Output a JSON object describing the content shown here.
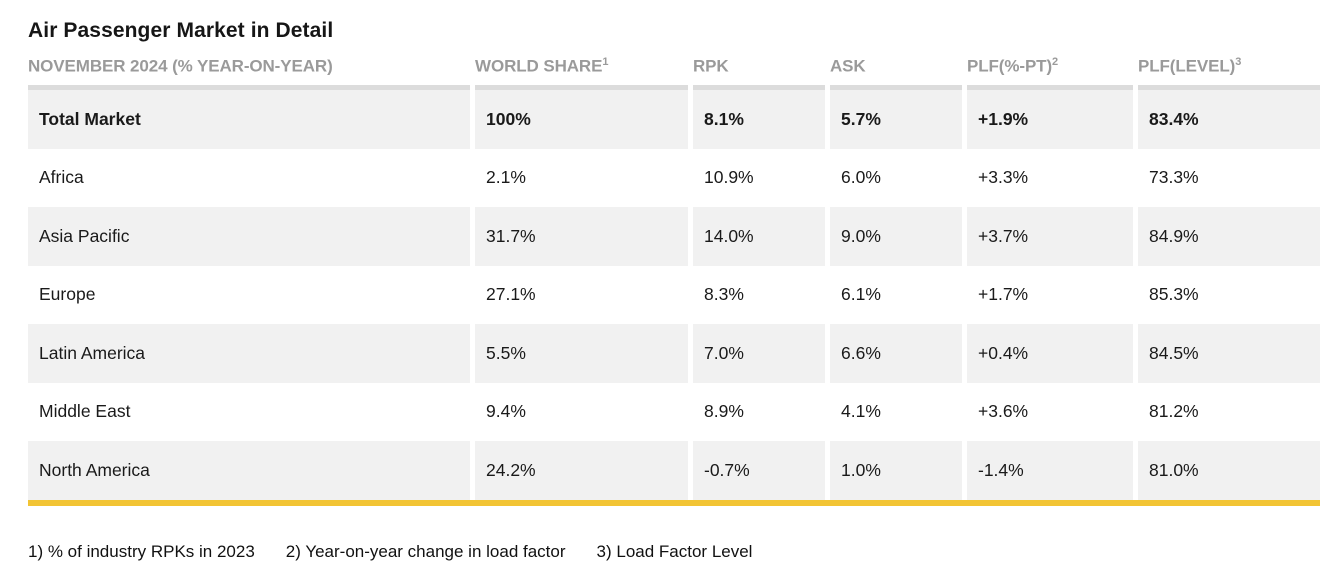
{
  "title": "Air Passenger Market in Detail",
  "accent_color": "#F2C434",
  "table": {
    "headers": [
      {
        "label": "NOVEMBER 2024 (% YEAR-ON-YEAR)",
        "sup": ""
      },
      {
        "label": "WORLD SHARE",
        "sup": "1"
      },
      {
        "label": "RPK",
        "sup": ""
      },
      {
        "label": "ASK",
        "sup": ""
      },
      {
        "label": "PLF(%-PT)",
        "sup": "2"
      },
      {
        "label": "PLF(LEVEL)",
        "sup": "3"
      }
    ],
    "rows": [
      {
        "region": "Total Market",
        "world_share": "100%",
        "rpk": "8.1%",
        "ask": "5.7%",
        "plf_pt": "+1.9%",
        "plf_level": "83.4%"
      },
      {
        "region": "Africa",
        "world_share": "2.1%",
        "rpk": "10.9%",
        "ask": "6.0%",
        "plf_pt": "+3.3%",
        "plf_level": "73.3%"
      },
      {
        "region": "Asia Pacific",
        "world_share": "31.7%",
        "rpk": "14.0%",
        "ask": "9.0%",
        "plf_pt": "+3.7%",
        "plf_level": "84.9%"
      },
      {
        "region": "Europe",
        "world_share": "27.1%",
        "rpk": "8.3%",
        "ask": "6.1%",
        "plf_pt": "+1.7%",
        "plf_level": "85.3%"
      },
      {
        "region": "Latin America",
        "world_share": "5.5%",
        "rpk": "7.0%",
        "ask": "6.6%",
        "plf_pt": "+0.4%",
        "plf_level": "84.5%"
      },
      {
        "region": "Middle East",
        "world_share": "9.4%",
        "rpk": "8.9%",
        "ask": "4.1%",
        "plf_pt": "+3.6%",
        "plf_level": "81.2%"
      },
      {
        "region": "North America",
        "world_share": "24.2%",
        "rpk": "-0.7%",
        "ask": "1.0%",
        "plf_pt": "-1.4%",
        "plf_level": "81.0%"
      }
    ]
  },
  "footnotes": [
    "1) % of industry RPKs in 2023",
    "2) Year-on-year change in load factor",
    "3) Load Factor Level"
  ],
  "chart_data": {
    "type": "table",
    "title": "Air Passenger Market in Detail",
    "subtitle": "NOVEMBER 2024 (% YEAR-ON-YEAR)",
    "columns": [
      "WORLD SHARE",
      "RPK",
      "ASK",
      "PLF(%-PT)",
      "PLF(LEVEL)"
    ],
    "units": {
      "world_share": "% of industry RPKs in 2023",
      "rpk": "% year-on-year",
      "ask": "% year-on-year",
      "plf_pt": "pt year-on-year change in load factor",
      "plf_level": "% load factor level"
    },
    "rows": [
      {
        "region": "Total Market",
        "world_share": 100.0,
        "rpk": 8.1,
        "ask": 5.7,
        "plf_pt": 1.9,
        "plf_level": 83.4
      },
      {
        "region": "Africa",
        "world_share": 2.1,
        "rpk": 10.9,
        "ask": 6.0,
        "plf_pt": 3.3,
        "plf_level": 73.3
      },
      {
        "region": "Asia Pacific",
        "world_share": 31.7,
        "rpk": 14.0,
        "ask": 9.0,
        "plf_pt": 3.7,
        "plf_level": 84.9
      },
      {
        "region": "Europe",
        "world_share": 27.1,
        "rpk": 8.3,
        "ask": 6.1,
        "plf_pt": 1.7,
        "plf_level": 85.3
      },
      {
        "region": "Latin America",
        "world_share": 5.5,
        "rpk": 7.0,
        "ask": 6.6,
        "plf_pt": 0.4,
        "plf_level": 84.5
      },
      {
        "region": "Middle East",
        "world_share": 9.4,
        "rpk": 8.9,
        "ask": 4.1,
        "plf_pt": 3.6,
        "plf_level": 81.2
      },
      {
        "region": "North America",
        "world_share": 24.2,
        "rpk": -0.7,
        "ask": 1.0,
        "plf_pt": -1.4,
        "plf_level": 81.0
      }
    ],
    "footnotes": [
      "1) % of industry RPKs in 2023",
      "2) Year-on-year change in load factor",
      "3) Load Factor Level"
    ]
  }
}
